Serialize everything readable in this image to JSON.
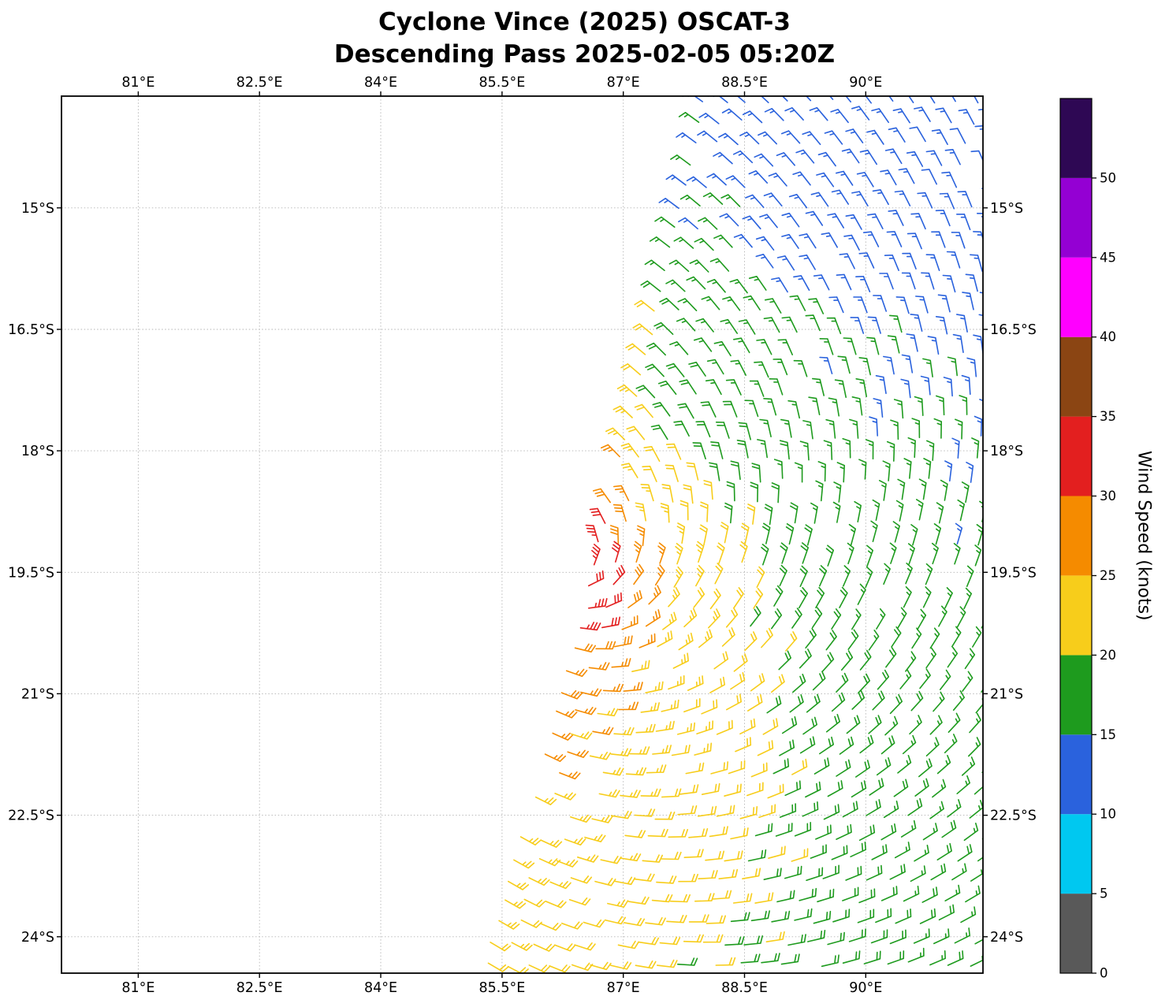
{
  "figure": {
    "title_line1": "Cyclone Vince (2025) OSCAT-3",
    "title_line2": "Descending Pass 2025-02-05 05:20Z"
  },
  "chart_data": {
    "type": "wind_barbs",
    "title": "Cyclone Vince (2025) OSCAT-3",
    "subtitle": "Descending Pass 2025-02-05 05:20Z",
    "x_axis": {
      "tick_values": [
        81,
        82.5,
        84,
        85.5,
        87,
        88.5,
        90
      ],
      "tick_labels": [
        "81°E",
        "82.5°E",
        "84°E",
        "85.5°E",
        "87°E",
        "88.5°E",
        "90°E"
      ],
      "lim": [
        80.05,
        91.45
      ],
      "label_sides": [
        "top",
        "bottom"
      ]
    },
    "y_axis": {
      "tick_values": [
        -15,
        -16.5,
        -18,
        -19.5,
        -21,
        -22.5,
        -24
      ],
      "tick_labels": [
        "15°S",
        "16.5°S",
        "18°S",
        "19.5°S",
        "21°S",
        "22.5°S",
        "24°S"
      ],
      "lim": [
        -24.45,
        -13.62
      ],
      "label_sides": [
        "left",
        "right"
      ]
    },
    "grid_on": true,
    "grid_spacing_deg": 0.26,
    "colorbar": {
      "label": "Wind Speed (knots)",
      "units": "knots",
      "tick_values": [
        0,
        5,
        10,
        15,
        20,
        25,
        30,
        35,
        40,
        45,
        50
      ],
      "level_edges": [
        0,
        5,
        10,
        15,
        20,
        25,
        30,
        35,
        40,
        45,
        50,
        55
      ],
      "colors": [
        "#595959",
        "#00c8f0",
        "#2a62dd",
        "#1e9b1e",
        "#f7cd1b",
        "#f58b00",
        "#e31f1f",
        "#8b4513",
        "#ff00ff",
        "#9400d3",
        "#2e0854"
      ]
    },
    "swath": {
      "left_boundary_lat_lon": [
        [
          -24.45,
          85.15
        ],
        [
          -23.2,
          85.5
        ],
        [
          -22.0,
          85.85
        ],
        [
          -21.0,
          86.1
        ],
        [
          -20.0,
          86.4
        ],
        [
          -19.0,
          86.6
        ],
        [
          -18.0,
          86.85
        ],
        [
          -17.0,
          87.1
        ],
        [
          -16.0,
          87.35
        ],
        [
          -15.0,
          87.55
        ],
        [
          -14.0,
          87.8
        ],
        [
          -13.6,
          87.9
        ]
      ],
      "lon_max": 91.75
    },
    "wind_model": {
      "hemisphere": "south",
      "rotation": "clockwise",
      "circulation_center_lon_lat": [
        86.3,
        -19.4
      ],
      "speed_center_lon_lat": [
        86.15,
        -19.5
      ],
      "radius_max_wind_deg": 0.55,
      "vmax_kt": 33,
      "core_floor": 0.5,
      "decay_exponent": 0.26,
      "inflow_fraction": 0.35,
      "asymmetry": {
        "amp_kt": 4,
        "weaker_toward_deg": 45,
        "ramp_deg": 3
      },
      "edge_jet": {
        "lat_min": -20.4,
        "lat_max": -15.9,
        "width_deg": 0.5,
        "boost_kt": 4
      },
      "speed_clamp_kt": [
        8,
        34
      ],
      "noise_kt": 1.6,
      "dropout_fraction": 0.04,
      "jitter_deg": 0.03
    }
  }
}
